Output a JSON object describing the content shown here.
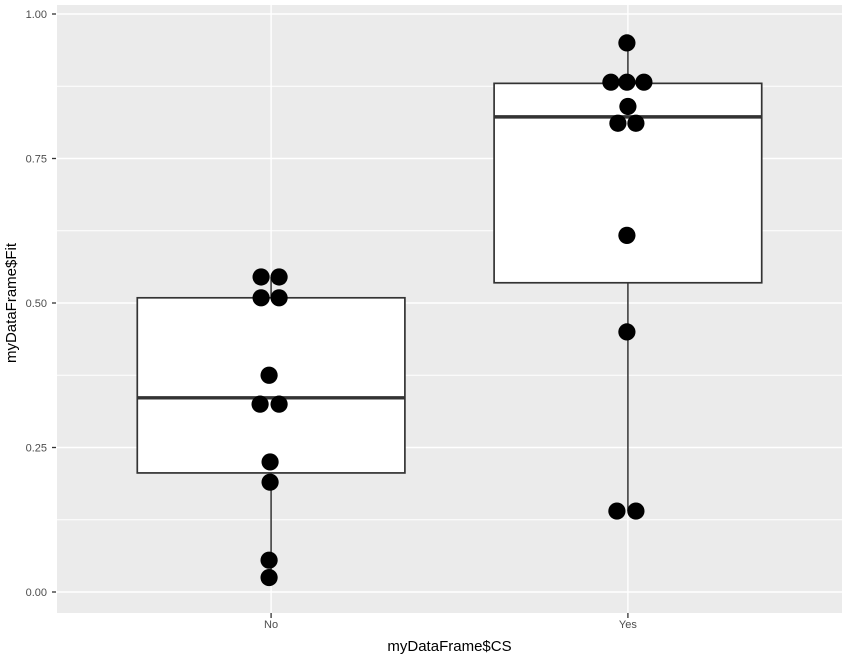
{
  "chart_data": {
    "type": "boxplot",
    "title": "",
    "xlabel": "myDataFrame$CS",
    "ylabel": "myDataFrame$Fit",
    "categories": [
      "No",
      "Yes"
    ],
    "y_ticks": [
      0.0,
      0.25,
      0.5,
      0.75,
      1.0
    ],
    "y_tick_labels": [
      "0.00",
      "0.25",
      "0.50",
      "0.75",
      "1.00"
    ],
    "y_minor": [
      0.125,
      0.375,
      0.625,
      0.875
    ],
    "ylim": [
      -0.035,
      1.01
    ],
    "grid": {
      "major": true,
      "minor": true,
      "vertical_at_categories": true
    },
    "legend": "none",
    "groups": [
      {
        "category": "No",
        "stats": {
          "min": 0.025,
          "q1": 0.206,
          "median": 0.336,
          "q3": 0.509,
          "max": 0.545
        },
        "points": [
          {
            "value": 0.545,
            "dx": -10
          },
          {
            "value": 0.545,
            "dx": 8
          },
          {
            "value": 0.509,
            "dx": -10
          },
          {
            "value": 0.509,
            "dx": 8
          },
          {
            "value": 0.375,
            "dx": -2
          },
          {
            "value": 0.325,
            "dx": -11
          },
          {
            "value": 0.325,
            "dx": 8
          },
          {
            "value": 0.225,
            "dx": -1
          },
          {
            "value": 0.19,
            "dx": -1
          },
          {
            "value": 0.055,
            "dx": -2
          },
          {
            "value": 0.025,
            "dx": -2
          }
        ]
      },
      {
        "category": "Yes",
        "stats": {
          "min": 0.14,
          "q1": 0.535,
          "median": 0.822,
          "q3": 0.88,
          "max": 0.95
        },
        "points": [
          {
            "value": 0.95,
            "dx": -1
          },
          {
            "value": 0.882,
            "dx": -17
          },
          {
            "value": 0.882,
            "dx": -1
          },
          {
            "value": 0.882,
            "dx": 16
          },
          {
            "value": 0.84,
            "dx": 0
          },
          {
            "value": 0.811,
            "dx": -10
          },
          {
            "value": 0.811,
            "dx": 8
          },
          {
            "value": 0.617,
            "dx": -1
          },
          {
            "value": 0.45,
            "dx": -1
          },
          {
            "value": 0.14,
            "dx": -11
          },
          {
            "value": 0.14,
            "dx": 8
          }
        ]
      }
    ],
    "style": {
      "background": "#FFFFFF",
      "panel_bg": "#EBEBEB",
      "grid_color": "#FFFFFF",
      "box_fill": "#FFFFFF",
      "box_stroke": "#333333",
      "point_color": "#000000",
      "tick_color": "#333333",
      "axis_text_color": "#4D4D4D",
      "axis_title_color": "#000000"
    }
  }
}
